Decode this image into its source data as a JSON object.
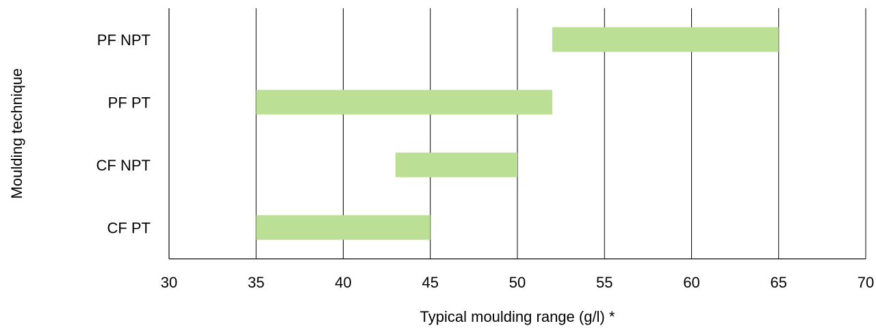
{
  "chart_data": {
    "type": "bar",
    "orientation": "horizontal-range",
    "xlabel": "Typical moulding range (g/l) *",
    "ylabel": "Moulding technique",
    "xlim": [
      30,
      70
    ],
    "xticks": [
      30,
      35,
      40,
      45,
      50,
      55,
      60,
      65,
      70
    ],
    "grid": "vertical",
    "categories": [
      "PF NPT",
      "PF PT",
      "CF NPT",
      "CF PT"
    ],
    "ranges": [
      {
        "category": "PF NPT",
        "start": 52,
        "end": 65
      },
      {
        "category": "PF PT",
        "start": 35,
        "end": 52
      },
      {
        "category": "CF NPT",
        "start": 43,
        "end": 50
      },
      {
        "category": "CF PT",
        "start": 35,
        "end": 45
      }
    ],
    "bar_color": "#bbdf95",
    "grid_color": "#000000"
  }
}
